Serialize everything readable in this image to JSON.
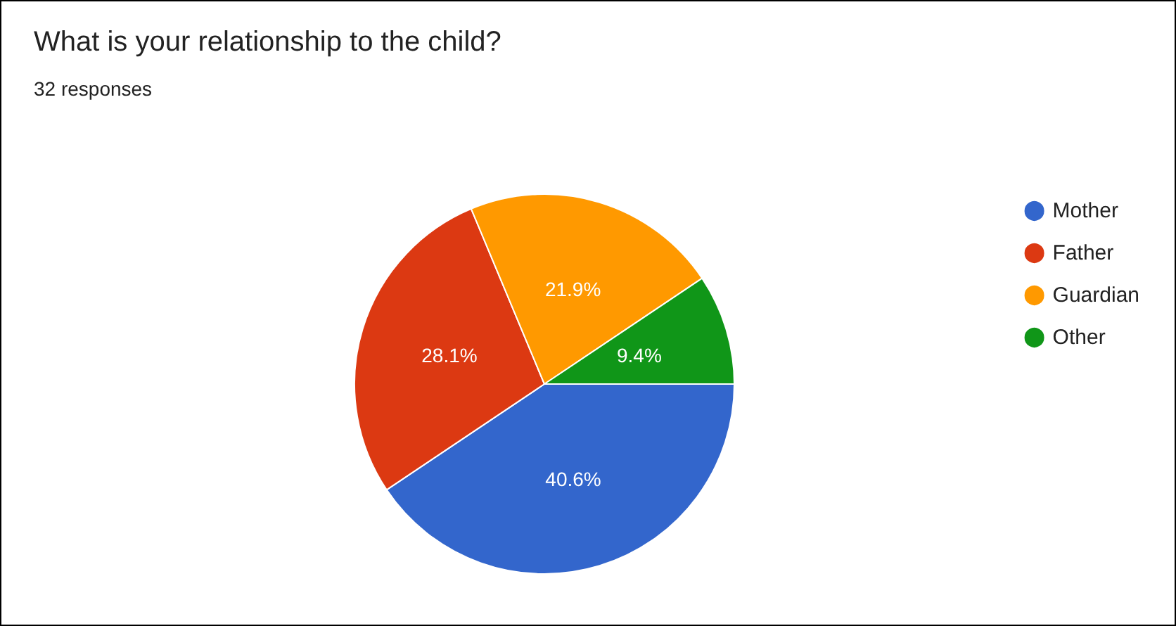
{
  "chart_data": {
    "type": "pie",
    "title": "What is your relationship to the child?",
    "subtitle": "32 responses",
    "categories": [
      "Mother",
      "Father",
      "Guardian",
      "Other"
    ],
    "values": [
      40.6,
      28.1,
      21.9,
      9.4
    ],
    "colors": [
      "#3366cc",
      "#dc3912",
      "#ff9900",
      "#109618"
    ],
    "value_labels": [
      "40.6%",
      "28.1%",
      "21.9%",
      "9.4%"
    ],
    "legend": "right"
  }
}
